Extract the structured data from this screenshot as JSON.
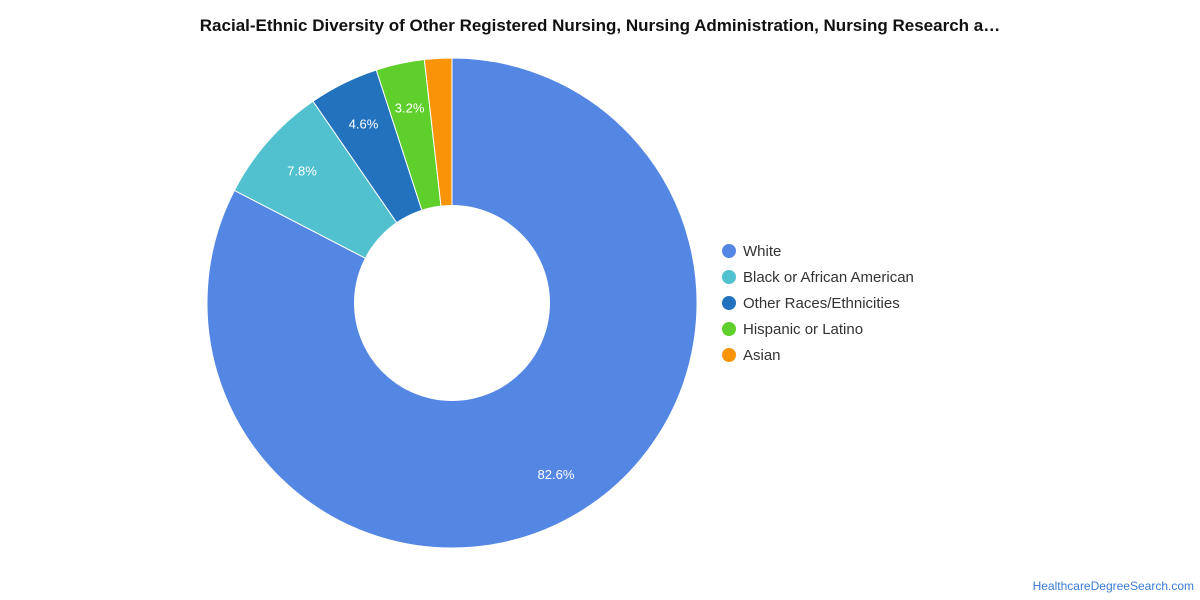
{
  "chart_data": {
    "type": "pie",
    "title": "Racial-Ethnic Diversity of Other Registered Nursing, Nursing Administration, Nursing Research a…",
    "categories": [
      "White",
      "Black or African American",
      "Other Races/Ethnicities",
      "Hispanic or Latino",
      "Asian"
    ],
    "values": [
      82.6,
      7.8,
      4.6,
      3.2,
      1.8
    ],
    "labels": [
      "82.6%",
      "7.8%",
      "4.6%",
      "3.2%",
      ""
    ],
    "colors": [
      "#5486e3",
      "#52c1cf",
      "#2272bd",
      "#5fcf2b",
      "#f99409"
    ],
    "legend_position": "right"
  },
  "source": {
    "label": "HealthcareDegreeSearch.com"
  }
}
